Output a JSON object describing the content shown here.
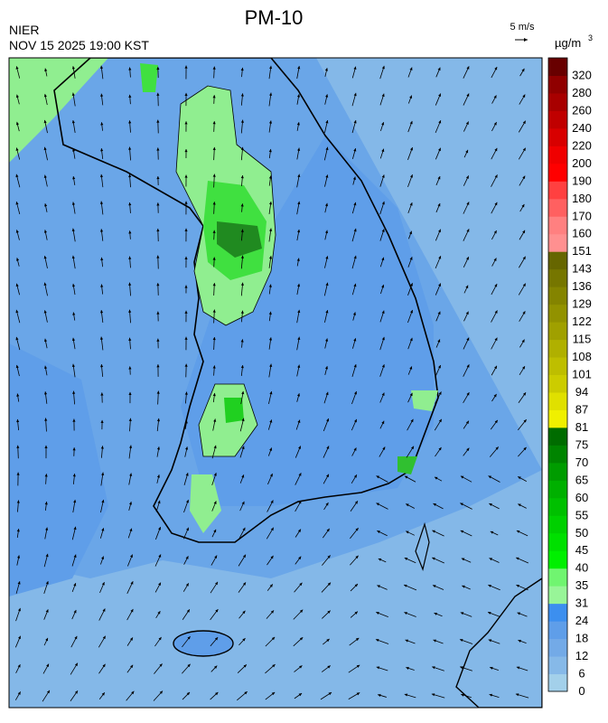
{
  "header": {
    "title": "PM-10",
    "agency": "NIER",
    "timestamp": "NOV 15 2025 19:00 KST"
  },
  "wind_scale": {
    "label": "5 m/s"
  },
  "legend": {
    "unit": "µg/m",
    "unit_exponent": "3",
    "ticks": [
      0,
      6,
      12,
      18,
      24,
      31,
      35,
      40,
      45,
      50,
      55,
      60,
      65,
      70,
      75,
      81,
      87,
      94,
      101,
      108,
      115,
      122,
      129,
      136,
      143,
      151,
      160,
      170,
      180,
      190,
      200,
      220,
      240,
      260,
      280,
      320
    ],
    "colors": [
      "#a3d0ea",
      "#86b9e8",
      "#73aae7",
      "#5f9ee9",
      "#3c8fef",
      "#98f598",
      "#70f570",
      "#00f000",
      "#00e000",
      "#00d000",
      "#00c000",
      "#00b000",
      "#009c00",
      "#008400",
      "#006c00",
      "#f0f000",
      "#e0e000",
      "#cccc00",
      "#bebe00",
      "#b0b000",
      "#a0a000",
      "#929200",
      "#848400",
      "#767600",
      "#666600",
      "#ff9090",
      "#ff8080",
      "#ff6060",
      "#ff4040",
      "#ff0000",
      "#f00000",
      "#d80000",
      "#c00000",
      "#a80000",
      "#900000",
      "#680000"
    ]
  }
}
